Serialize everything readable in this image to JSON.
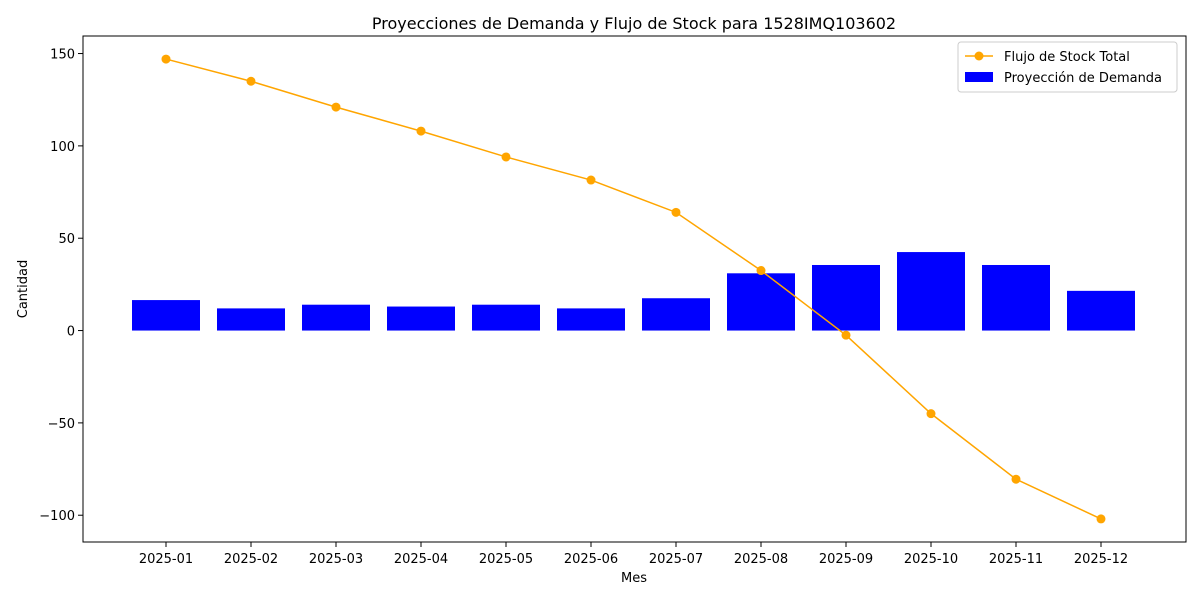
{
  "chart_data": {
    "type": "bar",
    "title": "Proyecciones de Demanda y Flujo de Stock para 1528IMQ103602",
    "xlabel": "Mes",
    "ylabel": "Cantidad",
    "categories": [
      "2025-01",
      "2025-02",
      "2025-03",
      "2025-04",
      "2025-05",
      "2025-06",
      "2025-07",
      "2025-08",
      "2025-09",
      "2025-10",
      "2025-11",
      "2025-12"
    ],
    "ylim": [
      -114.5,
      159.5
    ],
    "yticks": [
      -100,
      -50,
      0,
      50,
      100,
      150
    ],
    "ytick_labels": [
      "−100",
      "−50",
      "0",
      "50",
      "100",
      "150"
    ],
    "grid": false,
    "legend_position": "top-right",
    "series": [
      {
        "name": "Flujo de Stock Total",
        "type": "line",
        "color": "#ffa500",
        "marker": "circle",
        "values": [
          147,
          135,
          121,
          108,
          94,
          81.5,
          64,
          32.5,
          -2.5,
          -45,
          -80.5,
          -102
        ]
      },
      {
        "name": "Proyección de Demanda",
        "type": "bar",
        "color": "#0000ff",
        "values": [
          16.5,
          12,
          14,
          13,
          14,
          12,
          17.5,
          31,
          35.5,
          42.5,
          35.5,
          21.5
        ]
      }
    ]
  }
}
